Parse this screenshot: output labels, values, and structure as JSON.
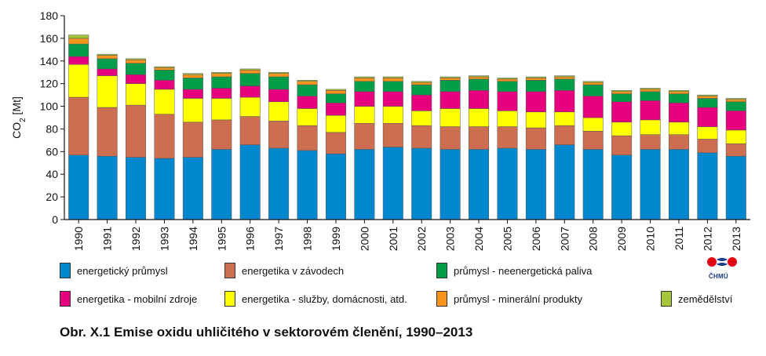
{
  "chart_data": {
    "type": "bar",
    "stacked": true,
    "ylabel": "CO2 [Mt]",
    "ylim": [
      0,
      180
    ],
    "yticks": [
      0,
      20,
      40,
      60,
      80,
      100,
      120,
      140,
      160,
      180
    ],
    "grid": false,
    "legend_position": "bottom",
    "categories": [
      "1990",
      "1991",
      "1992",
      "1993",
      "1994",
      "1995",
      "1996",
      "1997",
      "1998",
      "1999",
      "2000",
      "2001",
      "2002",
      "2003",
      "2004",
      "2005",
      "2006",
      "2007",
      "2008",
      "2009",
      "2010",
      "2011",
      "2012",
      "2013"
    ],
    "series": [
      {
        "name": "energetický průmysl",
        "color": "#0087cd",
        "values": [
          57,
          56,
          55,
          54,
          55,
          62,
          66,
          63,
          61,
          58,
          62,
          64,
          63,
          62,
          62,
          63,
          62,
          66,
          62,
          57,
          62,
          62,
          59,
          56
        ]
      },
      {
        "name": "energetika v závodech",
        "color": "#cd6e50",
        "values": [
          51,
          43,
          46,
          39,
          31,
          26,
          25,
          24,
          22,
          19,
          23,
          21,
          20,
          20,
          20,
          19,
          19,
          17,
          16,
          17,
          13,
          13,
          12,
          11
        ]
      },
      {
        "name": "energetika - služby, domácnosti, atd.",
        "color": "#ffff00",
        "values": [
          29,
          28,
          19,
          22,
          21,
          19,
          17,
          17,
          15,
          15,
          15,
          15,
          13,
          16,
          16,
          14,
          14,
          12,
          12,
          12,
          13,
          11,
          11,
          12
        ]
      },
      {
        "name": "energetika - mobilní zdroje",
        "color": "#e6007e",
        "values": [
          7,
          6,
          8,
          8,
          8,
          9,
          10,
          11,
          11,
          11,
          13,
          13,
          14,
          15,
          16,
          17,
          18,
          19,
          19,
          18,
          17,
          17,
          17,
          17
        ]
      },
      {
        "name": "průmysl - neenergetická paliva",
        "color": "#009e49",
        "values": [
          11,
          9,
          10,
          9,
          10,
          10,
          11,
          11,
          10,
          8,
          9,
          9,
          9,
          10,
          10,
          9,
          10,
          10,
          10,
          7,
          8,
          8,
          8,
          8
        ]
      },
      {
        "name": "průmysl - minerální produkty",
        "color": "#f7941d",
        "values": [
          5,
          3,
          3,
          2,
          3,
          3,
          3,
          3,
          3,
          3,
          3,
          3,
          2,
          2,
          2,
          2,
          2,
          2,
          2,
          2,
          2,
          2,
          2,
          2
        ]
      },
      {
        "name": "zemědělství",
        "color": "#a6c73b",
        "values": [
          3,
          1,
          1,
          1,
          1,
          1,
          1,
          1,
          1,
          1,
          1,
          1,
          1,
          1,
          1,
          1,
          1,
          1,
          1,
          1,
          1,
          1,
          1,
          1
        ]
      }
    ]
  },
  "legend": [
    {
      "label": "energetický průmysl",
      "color": "#0087cd"
    },
    {
      "label": "energetika v závodech",
      "color": "#cd6e50"
    },
    {
      "label": "průmysl - neenergetická paliva",
      "color": "#009e49"
    },
    {
      "label": "energetika - mobilní zdroje",
      "color": "#e6007e"
    },
    {
      "label": "energetika - služby, domácnosti, atd.",
      "color": "#ffff00"
    },
    {
      "label": "průmysl - minerální produkty",
      "color": "#f7941d"
    },
    {
      "label": "zemědělství",
      "color": "#a6c73b"
    }
  ],
  "logo": {
    "text": "ČHMÚ",
    "icon": "chmu-logo-icon"
  },
  "caption": "Obr. X.1  Emise oxidu uhličitého v sektorovém členění, 1990–2013"
}
